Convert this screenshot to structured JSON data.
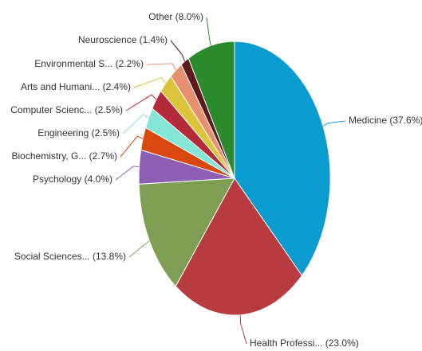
{
  "chart_data": {
    "type": "pie",
    "categories": [
      "Medicine",
      "Health Professi...",
      "Social Sciences...",
      "Psychology",
      "Biochemistry, G...",
      "Engineering",
      "Computer Scienc...",
      "Arts and Humani...",
      "Environmental S...",
      "Neuroscience",
      "Other"
    ],
    "values": [
      37.6,
      23.0,
      13.8,
      4.0,
      2.7,
      2.5,
      2.5,
      2.4,
      2.2,
      1.4,
      8.0
    ],
    "value_labels": [
      "(37.6%)",
      "(23.0%)",
      "(13.8%)",
      "(4.0%)",
      "(2.7%)",
      "(2.5%)",
      "(2.5%)",
      "(2.4%)",
      "(2.2%)",
      "(1.4%)",
      "(8.0%)"
    ],
    "colors": [
      "#0a9bcf",
      "#b83b40",
      "#7d9e53",
      "#8d5fb4",
      "#d9480f",
      "#85e6d6",
      "#b32a3a",
      "#dcc43a",
      "#e6906f",
      "#5c1a1e",
      "#2c8a2e"
    ]
  }
}
